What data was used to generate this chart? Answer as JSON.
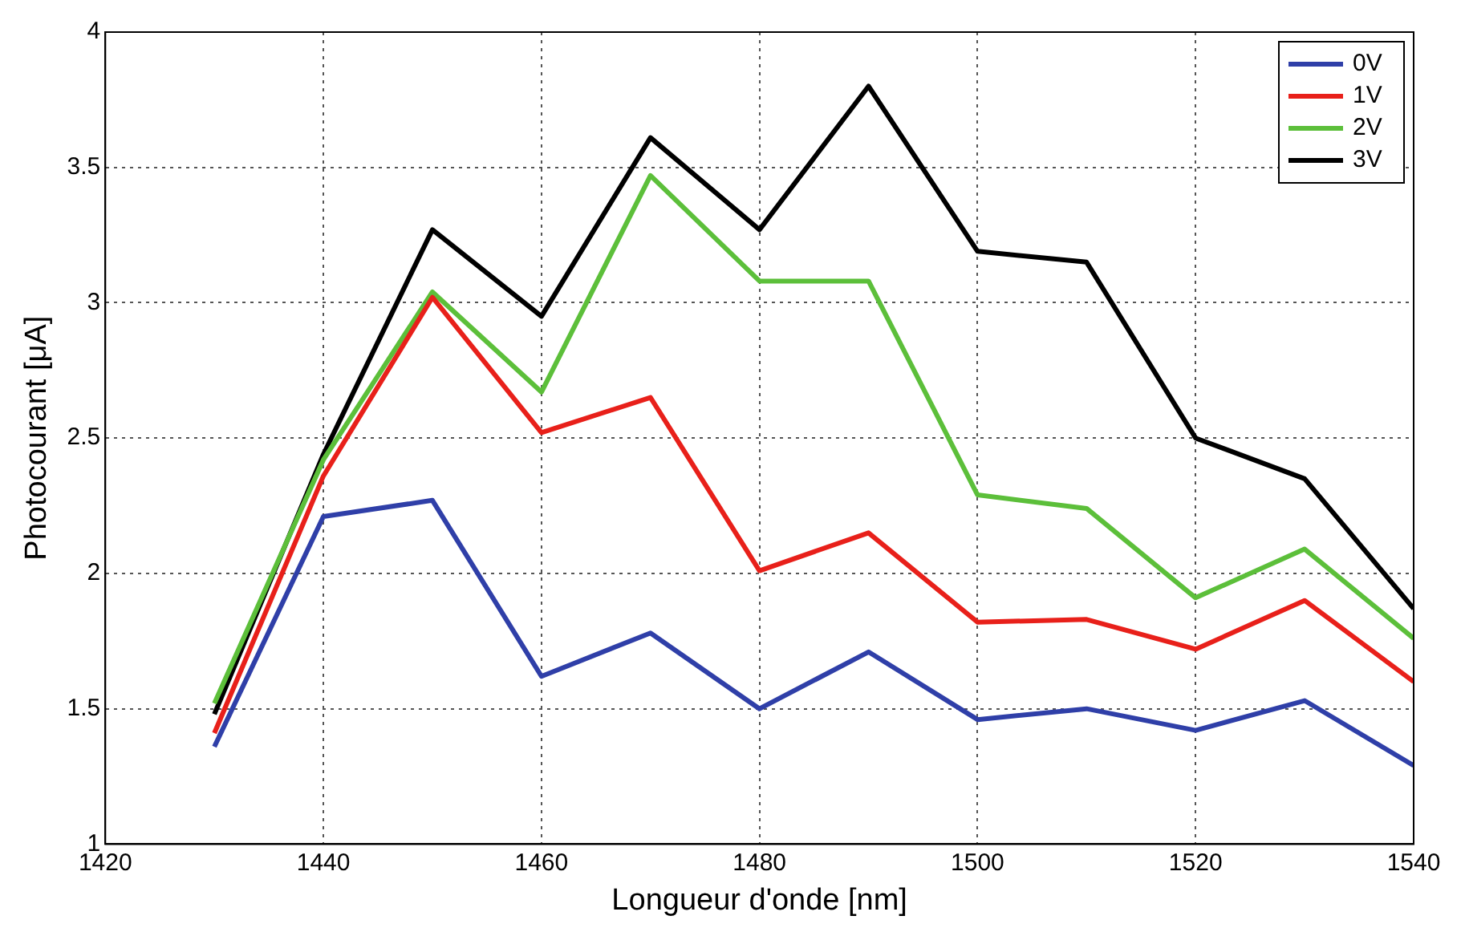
{
  "chart_data": {
    "type": "line",
    "xlabel": "Longueur d'onde [nm]",
    "ylabel": "Photocourant [μA]",
    "x": [
      1430,
      1440,
      1450,
      1460,
      1470,
      1480,
      1490,
      1500,
      1510,
      1520,
      1530,
      1540
    ],
    "series": [
      {
        "name": "0V",
        "color": "#2f3fa8",
        "values": [
          1.36,
          2.21,
          2.27,
          1.62,
          1.78,
          1.5,
          1.71,
          1.46,
          1.5,
          1.42,
          1.53,
          1.29
        ]
      },
      {
        "name": "1V",
        "color": "#e8201a",
        "values": [
          1.41,
          2.36,
          3.02,
          2.52,
          2.65,
          2.01,
          2.15,
          1.82,
          1.83,
          1.72,
          1.9,
          1.6
        ]
      },
      {
        "name": "2V",
        "color": "#5cbf3a",
        "values": [
          1.52,
          2.42,
          3.04,
          2.67,
          3.47,
          3.08,
          3.08,
          2.29,
          2.24,
          1.91,
          2.09,
          1.76
        ]
      },
      {
        "name": "3V",
        "color": "#000000",
        "values": [
          1.48,
          2.44,
          3.27,
          2.95,
          3.61,
          3.27,
          3.8,
          3.19,
          3.15,
          2.5,
          2.35,
          1.87
        ]
      }
    ],
    "xlim": [
      1420,
      1540
    ],
    "xticks": [
      1420,
      1440,
      1460,
      1480,
      1500,
      1520,
      1540
    ],
    "ylim": [
      1,
      4
    ],
    "yticks": [
      1,
      1.5,
      2,
      2.5,
      3,
      3.5,
      4
    ],
    "grid": true,
    "legend": "top right",
    "marker": "none",
    "line_style": "solid"
  }
}
